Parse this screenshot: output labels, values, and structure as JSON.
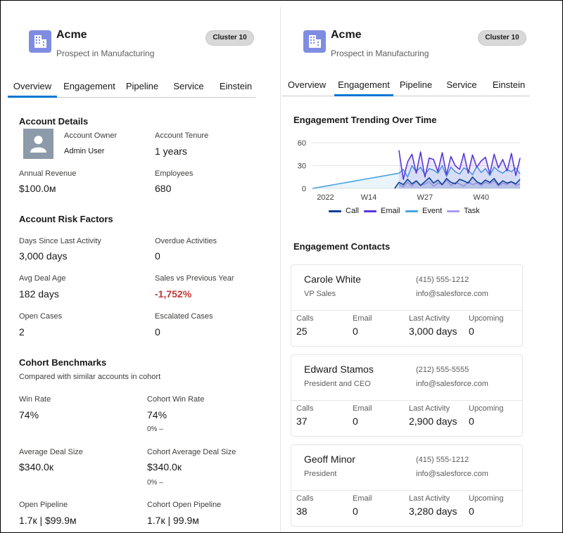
{
  "account": {
    "name": "Acme",
    "subtitle": "Prospect in Manufacturing",
    "cluster": "Cluster 10",
    "accent": "#7f8de1"
  },
  "tabs": [
    "Overview",
    "Engagement",
    "Pipeline",
    "Service",
    "Einstein"
  ],
  "active_tab_left": "Overview",
  "active_tab_right": "Engagement",
  "left": {
    "account_details": {
      "title": "Account Details",
      "owner_label": "Account Owner",
      "owner_value": "Admin User",
      "tenure_label": "Account Tenure",
      "tenure_value": "1 years",
      "revenue_label": "Annual Revenue",
      "revenue_value": "$100.0м",
      "employees_label": "Employees",
      "employees_value": "680"
    },
    "risk": {
      "title": "Account Risk Factors",
      "days_label": "Days Since Last Activity",
      "days_value": "3,000 days",
      "overdue_label": "Overdue Activities",
      "overdue_value": "0",
      "deal_age_label": "Avg Deal Age",
      "deal_age_value": "182 days",
      "sales_label": "Sales vs Previous Year",
      "sales_value": "-1,752%",
      "open_cases_label": "Open Cases",
      "open_cases_value": "2",
      "escalated_label": "Escalated Cases",
      "escalated_value": "0"
    },
    "cohort": {
      "title": "Cohort Benchmarks",
      "subtitle": "Compared with similar accounts in cohort",
      "win_rate_label": "Win Rate",
      "win_rate_value": "74%",
      "cohort_win_rate_label": "Cohort Win Rate",
      "cohort_win_rate_value": "74%",
      "cohort_win_rate_delta": "0% –",
      "deal_size_label": "Average Deal Size",
      "deal_size_value": "$340.0к",
      "cohort_deal_size_label": "Cohort Average Deal Size",
      "cohort_deal_size_value": "$340.0к",
      "cohort_deal_size_delta": "0% –",
      "pipeline_label": "Open Pipeline",
      "pipeline_value": "1.7к | $99.9м",
      "cohort_pipeline_label": "Cohort Open Pipeline",
      "cohort_pipeline_value": "1.7к | 99.9м"
    }
  },
  "right": {
    "chart_title": "Engagement Trending Over Time",
    "contacts_title": "Engagement Contacts",
    "contacts": [
      {
        "name": "Carole White",
        "title": "VP Sales",
        "phone": "(415) 555-1212",
        "email": "info@salesforce.com",
        "calls": "25",
        "emails": "0",
        "last_activity": "3,000 days",
        "upcoming": "0"
      },
      {
        "name": "Edward Stamos",
        "title": "President and CEO",
        "phone": "(212) 555-5555",
        "email": "info@salesforce.com",
        "calls": "37",
        "emails": "0",
        "last_activity": "2,900 days",
        "upcoming": "0"
      },
      {
        "name": "Geoff Minor",
        "title": "President",
        "phone": "(415) 555-1212",
        "email": "info@salesforce.com",
        "calls": "38",
        "emails": "0",
        "last_activity": "3,280 days",
        "upcoming": "0"
      }
    ],
    "stat_labels": {
      "calls": "Calls",
      "email": "Email",
      "last_activity": "Last Activity",
      "upcoming": "Upcoming"
    }
  },
  "chart_data": {
    "type": "line",
    "title": "Engagement Trending Over Time",
    "xlabel": "",
    "ylabel": "",
    "ylim": [
      0,
      60
    ],
    "yticks": [
      "60",
      "30",
      "0"
    ],
    "xticks": [
      "2022",
      "W14",
      "W27",
      "W40"
    ],
    "legend_position": "bottom",
    "weeks": [
      1,
      2,
      3,
      4,
      5,
      6,
      7,
      8,
      9,
      10,
      11,
      12,
      13,
      14,
      15,
      16,
      17,
      18,
      19,
      20,
      21,
      22,
      23,
      24,
      25,
      26,
      27,
      28,
      29,
      30,
      31,
      32,
      33,
      34,
      35,
      36,
      37,
      38,
      39,
      40,
      41,
      42,
      43,
      44,
      45,
      46,
      47,
      48,
      49
    ],
    "series": [
      {
        "name": "Call",
        "color": "#0b3f91",
        "values": [
          null,
          null,
          null,
          null,
          null,
          null,
          null,
          null,
          null,
          null,
          null,
          null,
          null,
          null,
          null,
          null,
          null,
          null,
          null,
          0,
          8,
          5,
          12,
          6,
          10,
          4,
          9,
          14,
          7,
          11,
          5,
          13,
          8,
          6,
          12,
          10,
          7,
          15,
          9,
          6,
          11,
          8,
          13,
          5,
          10,
          7,
          9,
          6,
          12
        ]
      },
      {
        "name": "Email",
        "color": "#5a38d6",
        "values": [
          null,
          null,
          null,
          null,
          null,
          null,
          null,
          null,
          null,
          null,
          null,
          null,
          null,
          null,
          null,
          null,
          null,
          null,
          null,
          null,
          50,
          12,
          35,
          45,
          20,
          48,
          15,
          40,
          38,
          22,
          47,
          18,
          42,
          30,
          25,
          46,
          20,
          44,
          28,
          36,
          41,
          19,
          45,
          27,
          38,
          23,
          46,
          17,
          40
        ]
      },
      {
        "name": "Event",
        "color": "#4aa3df",
        "values": [
          0,
          1,
          2,
          3,
          4,
          5,
          6,
          7,
          8,
          9,
          10,
          11,
          12,
          13,
          14,
          15,
          16,
          17,
          18,
          19,
          20,
          25,
          15,
          30,
          22,
          28,
          18,
          26,
          24,
          20,
          30,
          16,
          28,
          22,
          19,
          27,
          24,
          18,
          29,
          21,
          26,
          17,
          28,
          23,
          20,
          25,
          22,
          27,
          19
        ]
      },
      {
        "name": "Task",
        "color": "#a99bf0",
        "values": [
          null,
          null,
          null,
          null,
          null,
          null,
          null,
          null,
          null,
          null,
          null,
          null,
          null,
          null,
          null,
          null,
          null,
          null,
          null,
          null,
          5,
          2,
          8,
          3,
          10,
          4,
          6,
          9,
          3,
          7,
          5,
          11,
          4,
          8,
          6,
          3,
          9,
          5,
          7,
          4,
          8,
          6,
          10,
          3,
          7,
          5,
          9,
          4,
          6
        ]
      }
    ]
  }
}
